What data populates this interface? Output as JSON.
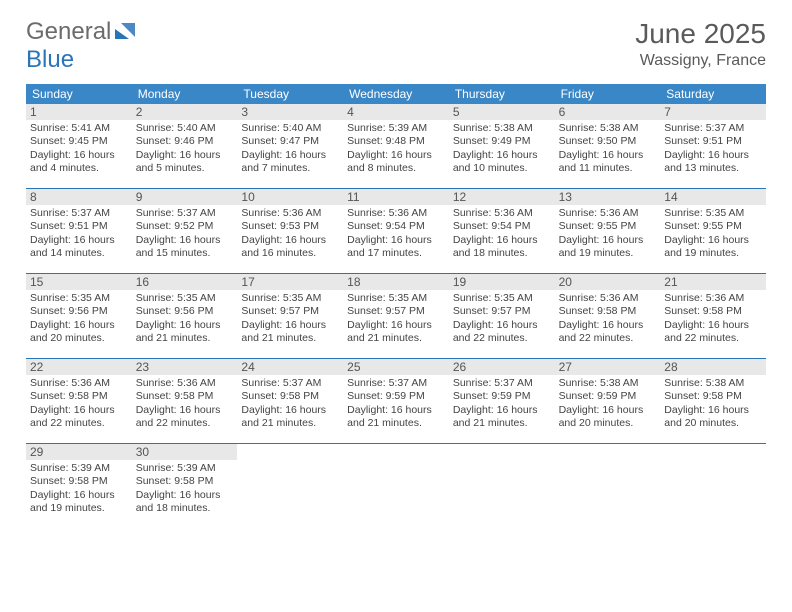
{
  "brand": {
    "part1": "General",
    "part2": "Blue"
  },
  "title": "June 2025",
  "location": "Wassigny, France",
  "colors": {
    "header_bar": "#3a87c7",
    "divider": "#2a74b8",
    "daynum_bg": "#e8e8e8",
    "text_muted": "#5a5a5a",
    "cell_text": "#444444",
    "logo_gray": "#6b6b6b",
    "logo_blue": "#2a74b8",
    "background": "#ffffff"
  },
  "layout": {
    "columns": 7,
    "cell_fontsize_pt": 8,
    "header_fontsize_pt": 21
  },
  "dow": [
    "Sunday",
    "Monday",
    "Tuesday",
    "Wednesday",
    "Thursday",
    "Friday",
    "Saturday"
  ],
  "weeks": [
    [
      {
        "n": "1",
        "sr": "5:41 AM",
        "ss": "9:45 PM",
        "dl": "16 hours and 4 minutes."
      },
      {
        "n": "2",
        "sr": "5:40 AM",
        "ss": "9:46 PM",
        "dl": "16 hours and 5 minutes."
      },
      {
        "n": "3",
        "sr": "5:40 AM",
        "ss": "9:47 PM",
        "dl": "16 hours and 7 minutes."
      },
      {
        "n": "4",
        "sr": "5:39 AM",
        "ss": "9:48 PM",
        "dl": "16 hours and 8 minutes."
      },
      {
        "n": "5",
        "sr": "5:38 AM",
        "ss": "9:49 PM",
        "dl": "16 hours and 10 minutes."
      },
      {
        "n": "6",
        "sr": "5:38 AM",
        "ss": "9:50 PM",
        "dl": "16 hours and 11 minutes."
      },
      {
        "n": "7",
        "sr": "5:37 AM",
        "ss": "9:51 PM",
        "dl": "16 hours and 13 minutes."
      }
    ],
    [
      {
        "n": "8",
        "sr": "5:37 AM",
        "ss": "9:51 PM",
        "dl": "16 hours and 14 minutes."
      },
      {
        "n": "9",
        "sr": "5:37 AM",
        "ss": "9:52 PM",
        "dl": "16 hours and 15 minutes."
      },
      {
        "n": "10",
        "sr": "5:36 AM",
        "ss": "9:53 PM",
        "dl": "16 hours and 16 minutes."
      },
      {
        "n": "11",
        "sr": "5:36 AM",
        "ss": "9:54 PM",
        "dl": "16 hours and 17 minutes."
      },
      {
        "n": "12",
        "sr": "5:36 AM",
        "ss": "9:54 PM",
        "dl": "16 hours and 18 minutes."
      },
      {
        "n": "13",
        "sr": "5:36 AM",
        "ss": "9:55 PM",
        "dl": "16 hours and 19 minutes."
      },
      {
        "n": "14",
        "sr": "5:35 AM",
        "ss": "9:55 PM",
        "dl": "16 hours and 19 minutes."
      }
    ],
    [
      {
        "n": "15",
        "sr": "5:35 AM",
        "ss": "9:56 PM",
        "dl": "16 hours and 20 minutes."
      },
      {
        "n": "16",
        "sr": "5:35 AM",
        "ss": "9:56 PM",
        "dl": "16 hours and 21 minutes."
      },
      {
        "n": "17",
        "sr": "5:35 AM",
        "ss": "9:57 PM",
        "dl": "16 hours and 21 minutes."
      },
      {
        "n": "18",
        "sr": "5:35 AM",
        "ss": "9:57 PM",
        "dl": "16 hours and 21 minutes."
      },
      {
        "n": "19",
        "sr": "5:35 AM",
        "ss": "9:57 PM",
        "dl": "16 hours and 22 minutes."
      },
      {
        "n": "20",
        "sr": "5:36 AM",
        "ss": "9:58 PM",
        "dl": "16 hours and 22 minutes."
      },
      {
        "n": "21",
        "sr": "5:36 AM",
        "ss": "9:58 PM",
        "dl": "16 hours and 22 minutes."
      }
    ],
    [
      {
        "n": "22",
        "sr": "5:36 AM",
        "ss": "9:58 PM",
        "dl": "16 hours and 22 minutes."
      },
      {
        "n": "23",
        "sr": "5:36 AM",
        "ss": "9:58 PM",
        "dl": "16 hours and 22 minutes."
      },
      {
        "n": "24",
        "sr": "5:37 AM",
        "ss": "9:58 PM",
        "dl": "16 hours and 21 minutes."
      },
      {
        "n": "25",
        "sr": "5:37 AM",
        "ss": "9:59 PM",
        "dl": "16 hours and 21 minutes."
      },
      {
        "n": "26",
        "sr": "5:37 AM",
        "ss": "9:59 PM",
        "dl": "16 hours and 21 minutes."
      },
      {
        "n": "27",
        "sr": "5:38 AM",
        "ss": "9:59 PM",
        "dl": "16 hours and 20 minutes."
      },
      {
        "n": "28",
        "sr": "5:38 AM",
        "ss": "9:58 PM",
        "dl": "16 hours and 20 minutes."
      }
    ],
    [
      {
        "n": "29",
        "sr": "5:39 AM",
        "ss": "9:58 PM",
        "dl": "16 hours and 19 minutes."
      },
      {
        "n": "30",
        "sr": "5:39 AM",
        "ss": "9:58 PM",
        "dl": "16 hours and 18 minutes."
      },
      null,
      null,
      null,
      null,
      null
    ]
  ],
  "labels": {
    "sunrise": "Sunrise:",
    "sunset": "Sunset:",
    "daylight": "Daylight:"
  }
}
